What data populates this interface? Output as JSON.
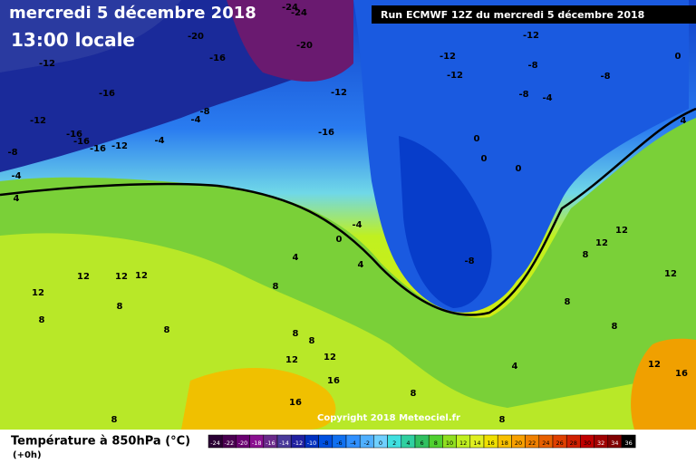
{
  "header": {
    "date": "mercredi 5 décembre 2018",
    "time": "13:00 locale",
    "run": "Run ECMWF 12Z du mercredi 5 décembre 2018"
  },
  "copyright": "Copyright 2018 Meteociel.fr",
  "legend": {
    "title": "Température à 850hPa (°C)",
    "step": "(+0h)",
    "values": [
      -24,
      -22,
      -20,
      -18,
      -16,
      -14,
      -12,
      -10,
      -8,
      -6,
      -4,
      -2,
      0,
      2,
      4,
      6,
      8,
      10,
      12,
      14,
      16,
      18,
      20,
      22,
      24,
      26,
      28,
      30,
      32,
      34,
      36
    ],
    "colors": [
      "#2a0033",
      "#4a0050",
      "#6a0070",
      "#8a1090",
      "#6a2a8a",
      "#4a3a9a",
      "#2020a0",
      "#0030c0",
      "#0050e0",
      "#1070f0",
      "#3090ff",
      "#50b0ff",
      "#70d0ff",
      "#40e0e0",
      "#30d0a0",
      "#30c060",
      "#50d030",
      "#90e020",
      "#c0f020",
      "#e0f020",
      "#f0e000",
      "#f8c000",
      "#f8a000",
      "#f08000",
      "#e86000",
      "#e04000",
      "#d02000",
      "#c00000",
      "#a00000",
      "#800000",
      "#000000"
    ]
  },
  "map": {
    "labels": [
      "-12",
      "-16",
      "-12",
      "-16",
      "-16",
      "-16",
      "-12",
      "-8",
      "-4",
      "4",
      "-4",
      "-4",
      "-8",
      "-16",
      "-20",
      "-20",
      "-24",
      "-24",
      "-12",
      "-16",
      "-12",
      "-12",
      "-12",
      "-8",
      "-8",
      "-8",
      "-4",
      "0",
      "4",
      "0",
      "0",
      "0",
      "-4",
      "0",
      "-8",
      "4",
      "4",
      "12",
      "12",
      "12",
      "12",
      "8",
      "8",
      "8",
      "8",
      "8",
      "8",
      "12",
      "12",
      "16",
      "16",
      "8",
      "8",
      "8",
      "4",
      "12",
      "12",
      "8",
      "12",
      "8",
      "8",
      "12",
      "16"
    ]
  }
}
